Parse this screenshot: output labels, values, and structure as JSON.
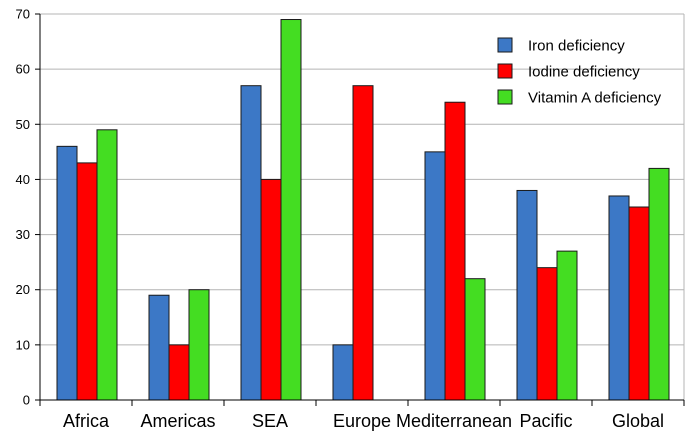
{
  "chart_data": {
    "type": "bar",
    "title": "",
    "xlabel": "",
    "ylabel": "",
    "categories": [
      "Africa",
      "Americas",
      "SEA",
      "Europe",
      "Mediterranean",
      "Pacific",
      "Global"
    ],
    "series": [
      {
        "name": "Iron deficiency",
        "color": "#3c78c6",
        "values": [
          46,
          19,
          57,
          10,
          45,
          38,
          37
        ]
      },
      {
        "name": "Iodine deficiency",
        "color": "#ff0000",
        "values": [
          43,
          10,
          40,
          57,
          54,
          24,
          35
        ]
      },
      {
        "name": "Vitamin A deficiency",
        "color": "#44dd22",
        "values": [
          49,
          20,
          69,
          null,
          22,
          27,
          42
        ]
      }
    ],
    "ylim": [
      0,
      70
    ],
    "yticks": [
      0,
      10,
      20,
      30,
      40,
      50,
      60,
      70
    ],
    "grid": true,
    "legend_position": "top-right"
  }
}
